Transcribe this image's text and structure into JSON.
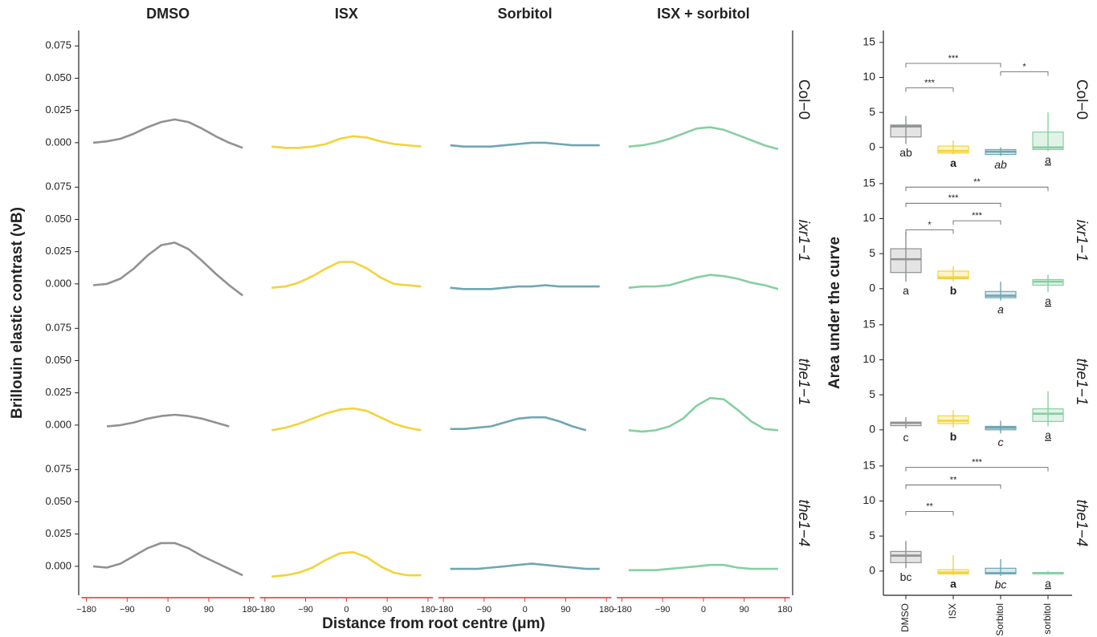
{
  "chart_data": [
    {
      "type": "line",
      "y_label": "Brillouin elastic contrast (νB)",
      "x_label": "Distance from root centre (μm)",
      "columns": [
        "DMSO",
        "ISX",
        "Sorbitol",
        "ISX + sorbitol"
      ],
      "rows": [
        "Col−0",
        "ixr1−1",
        "the1−1",
        "the1−4"
      ],
      "colors": [
        "#8e9290",
        "#f2d33a",
        "#6fa6b4",
        "#86cfa2"
      ],
      "x": [
        -165,
        -135,
        -105,
        -75,
        -45,
        -15,
        15,
        45,
        75,
        105,
        135,
        165
      ],
      "xlim": [
        -197,
        197
      ],
      "xticks": [
        {
          "value": -180,
          "label": "−180"
        },
        {
          "value": -90,
          "label": "−90"
        },
        0,
        90,
        180
      ],
      "ylim": [
        -0.02,
        0.087
      ],
      "yticks": [
        {
          "value": 0,
          "label": "0.000"
        },
        {
          "value": 0.025,
          "label": "0.025"
        },
        {
          "value": 0.05,
          "label": "0.050"
        },
        {
          "value": 0.075,
          "label": "0.075"
        }
      ],
      "panels": [
        [
          {
            "values": [
              0.0,
              0.001,
              0.003,
              0.007,
              0.012,
              0.016,
              0.018,
              0.016,
              0.011,
              0.005,
              0.0,
              -0.004
            ]
          },
          {
            "values": [
              -0.003,
              -0.004,
              -0.004,
              -0.003,
              -0.001,
              0.003,
              0.005,
              0.004,
              0.001,
              -0.001,
              -0.002,
              -0.003
            ]
          },
          {
            "values": [
              -0.002,
              -0.003,
              -0.003,
              -0.003,
              -0.002,
              -0.001,
              0.0,
              0.0,
              -0.001,
              -0.002,
              -0.002,
              -0.002
            ]
          },
          {
            "values": [
              -0.003,
              -0.002,
              0.0,
              0.003,
              0.007,
              0.011,
              0.012,
              0.01,
              0.006,
              0.002,
              -0.002,
              -0.005
            ]
          }
        ],
        [
          {
            "values": [
              -0.001,
              0.0,
              0.004,
              0.012,
              0.022,
              0.03,
              0.032,
              0.027,
              0.018,
              0.008,
              -0.001,
              -0.009
            ]
          },
          {
            "values": [
              -0.003,
              -0.002,
              0.001,
              0.006,
              0.012,
              0.017,
              0.017,
              0.012,
              0.005,
              0.0,
              -0.001,
              -0.002
            ]
          },
          {
            "values": [
              -0.003,
              -0.004,
              -0.004,
              -0.004,
              -0.003,
              -0.002,
              -0.002,
              -0.001,
              -0.002,
              -0.002,
              -0.002,
              -0.002
            ]
          },
          {
            "values": [
              -0.003,
              -0.002,
              -0.002,
              -0.001,
              0.002,
              0.005,
              0.007,
              0.006,
              0.004,
              0.001,
              -0.001,
              -0.004
            ]
          }
        ],
        [
          {
            "values": [
              null,
              -0.001,
              0.0,
              0.002,
              0.005,
              0.007,
              0.008,
              0.007,
              0.005,
              0.002,
              -0.001,
              null
            ]
          },
          {
            "values": [
              -0.004,
              -0.002,
              0.001,
              0.005,
              0.009,
              0.012,
              0.013,
              0.011,
              0.006,
              0.001,
              -0.002,
              -0.004
            ]
          },
          {
            "values": [
              -0.003,
              -0.003,
              -0.002,
              -0.001,
              0.002,
              0.005,
              0.006,
              0.006,
              0.003,
              -0.001,
              -0.004,
              null
            ]
          },
          {
            "values": [
              -0.004,
              -0.005,
              -0.004,
              -0.001,
              0.005,
              0.015,
              0.021,
              0.02,
              0.012,
              0.003,
              -0.003,
              -0.004
            ]
          }
        ],
        [
          {
            "values": [
              0.0,
              -0.001,
              0.002,
              0.008,
              0.014,
              0.018,
              0.018,
              0.014,
              0.008,
              0.003,
              -0.002,
              -0.007
            ]
          },
          {
            "values": [
              -0.008,
              -0.007,
              -0.005,
              -0.001,
              0.005,
              0.01,
              0.011,
              0.007,
              0.0,
              -0.005,
              -0.007,
              -0.007
            ]
          },
          {
            "values": [
              -0.002,
              -0.002,
              -0.002,
              -0.001,
              0.0,
              0.001,
              0.002,
              0.001,
              0.0,
              -0.001,
              -0.002,
              -0.002
            ]
          },
          {
            "values": [
              -0.003,
              -0.003,
              -0.003,
              -0.002,
              -0.001,
              0.0,
              0.001,
              0.001,
              -0.001,
              -0.002,
              -0.002,
              -0.002
            ]
          }
        ]
      ]
    },
    {
      "type": "box",
      "y_label": "Area under the curve",
      "categories": [
        "DMSO",
        "ISX",
        "Sorbitol",
        "ISX + sorbitol"
      ],
      "rows": [
        "Col−0",
        "ixr1−1",
        "the1−1",
        "the1−4"
      ],
      "colors": [
        "#8e9290",
        "#f2d33a",
        "#6fa6b4",
        "#86cfa2"
      ],
      "ylim": [
        -3,
        16.7
      ],
      "yticks": [
        0,
        5,
        10,
        15
      ],
      "panels": [
        {
          "boxes": [
            {
              "min": 0.5,
              "q1": 1.5,
              "median": 3,
              "q3": 3.2,
              "max": 4.5,
              "letter": "ab"
            },
            {
              "min": -1,
              "q1": -0.8,
              "median": -0.5,
              "q3": 0.2,
              "max": 1,
              "letter": "a"
            },
            {
              "min": -1.2,
              "q1": -1,
              "median": -0.6,
              "q3": -0.3,
              "max": 0,
              "letter": "ab"
            },
            {
              "min": -0.5,
              "q1": -0.3,
              "median": 0,
              "q3": 2.2,
              "max": 5,
              "letter": "a"
            }
          ],
          "brackets": [
            {
              "from": "DMSO",
              "to": "Sorbitol",
              "y": 12,
              "label": "***"
            },
            {
              "from": "Sorbitol",
              "to": "ISX + sorbitol",
              "y": 10.8,
              "label": "*"
            },
            {
              "from": "DMSO",
              "to": "ISX",
              "y": 8.5,
              "label": "***"
            }
          ]
        },
        {
          "boxes": [
            {
              "min": 1,
              "q1": 2.3,
              "median": 4.2,
              "q3": 5.7,
              "max": 8,
              "letter": "a"
            },
            {
              "min": 1,
              "q1": 1.4,
              "median": 1.6,
              "q3": 2.5,
              "max": 3.2,
              "letter": "b"
            },
            {
              "min": -1.7,
              "q1": -1.3,
              "median": -1,
              "q3": -0.4,
              "max": 1,
              "letter": "a"
            },
            {
              "min": -0.5,
              "q1": 0.5,
              "median": 1,
              "q3": 1.3,
              "max": 2,
              "letter": "a"
            }
          ],
          "brackets": [
            {
              "from": "DMSO",
              "to": "ISX + sorbitol",
              "y": 14.5,
              "label": "**"
            },
            {
              "from": "DMSO",
              "to": "Sorbitol",
              "y": 12.2,
              "label": "***"
            },
            {
              "from": "ISX",
              "to": "Sorbitol",
              "y": 9.7,
              "label": "***"
            },
            {
              "from": "DMSO",
              "to": "ISX",
              "y": 8.4,
              "label": "*"
            }
          ]
        },
        {
          "boxes": [
            {
              "min": 0.2,
              "q1": 0.6,
              "median": 1,
              "q3": 1.1,
              "max": 1.8,
              "letter": "c"
            },
            {
              "min": 0.3,
              "q1": 0.9,
              "median": 1.3,
              "q3": 2,
              "max": 2.8,
              "letter": "b"
            },
            {
              "min": -0.5,
              "q1": 0,
              "median": 0.3,
              "q3": 0.5,
              "max": 1.3,
              "letter": "c"
            },
            {
              "min": 0.5,
              "q1": 1.2,
              "median": 2.3,
              "q3": 3,
              "max": 5.5,
              "letter": "a"
            }
          ],
          "brackets": []
        },
        {
          "boxes": [
            {
              "min": 0.4,
              "q1": 1.2,
              "median": 2.2,
              "q3": 2.8,
              "max": 4.3,
              "letter": "bc"
            },
            {
              "min": -0.6,
              "q1": -0.4,
              "median": -0.2,
              "q3": 0.2,
              "max": 2.3,
              "letter": "a"
            },
            {
              "min": -0.7,
              "q1": -0.4,
              "median": -0.3,
              "q3": 0.4,
              "max": 1.7,
              "letter": "bc"
            },
            {
              "min": -0.5,
              "q1": -0.4,
              "median": -0.3,
              "q3": -0.2,
              "max": 0,
              "letter": "a"
            }
          ],
          "brackets": [
            {
              "from": "DMSO",
              "to": "ISX + sorbitol",
              "y": 14.8,
              "label": "***"
            },
            {
              "from": "DMSO",
              "to": "Sorbitol",
              "y": 12.3,
              "label": "**"
            },
            {
              "from": "DMSO",
              "to": "ISX",
              "y": 8.5,
              "label": "**"
            }
          ]
        }
      ]
    }
  ]
}
